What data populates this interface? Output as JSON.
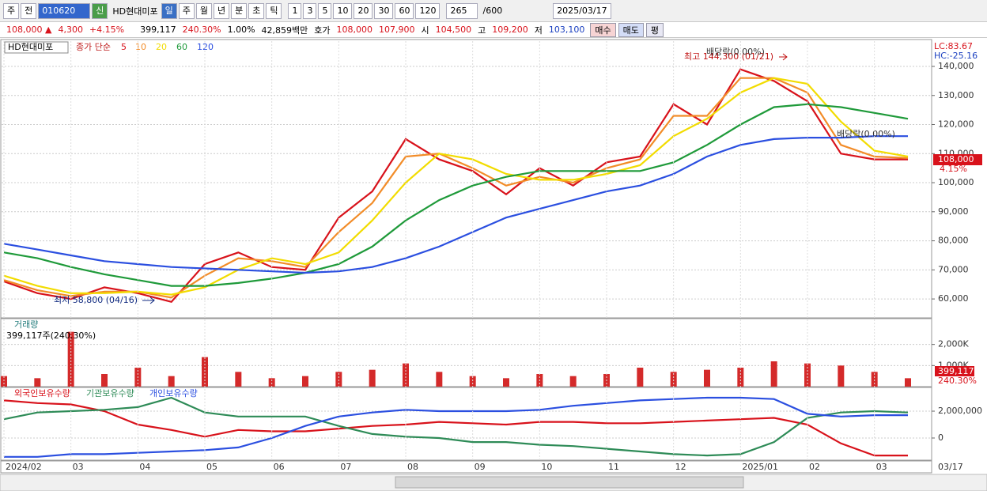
{
  "toolbar": {
    "market": "주",
    "prev": "전",
    "code": "010620",
    "badge": "신",
    "name": "HD현대미포",
    "periods": [
      "일",
      "주",
      "월",
      "년",
      "분",
      "초",
      "틱"
    ],
    "intervals": [
      "1",
      "3",
      "5",
      "10",
      "20",
      "30",
      "60",
      "120"
    ],
    "count": "265",
    "total": "/600",
    "date": "2025/03/17"
  },
  "info_bar": {
    "price": "108,000 ▲",
    "change": "4,300",
    "change_pct": "+4.15%",
    "volume": "399,117",
    "volume_pct": "240.30%",
    "ratio": "1.00%",
    "amount": "42,859백만",
    "quote_label": "호가",
    "ask": "108,000",
    "bid": "107,900",
    "open_label": "시",
    "open": "104,500",
    "high_label": "고",
    "high": "109,200",
    "low_label": "저",
    "low": "103,100",
    "buy": "매수",
    "sell": "매도",
    "avg": "평"
  },
  "chart_data": [
    {
      "type": "line",
      "title": "HD현대미포",
      "legend_prefix": "종가 단순",
      "grid": true,
      "ylim": [
        53500,
        148700
      ],
      "yticks": [
        {
          "value": 60000,
          "label": "60,000"
        },
        {
          "value": 70000,
          "label": "70,000"
        },
        {
          "value": 80000,
          "label": "80,000"
        },
        {
          "value": 90000,
          "label": "90,000"
        },
        {
          "value": 100000,
          "label": "100,000"
        },
        {
          "value": 110000,
          "label": "110,000"
        },
        {
          "value": 120000,
          "label": "120,000"
        },
        {
          "value": 130000,
          "label": "130,000"
        },
        {
          "value": 140000,
          "label": "140,000"
        }
      ],
      "series": [
        {
          "name": "5",
          "color": "#d8121b",
          "values": [
            66000,
            62000,
            60000,
            64000,
            62000,
            59000,
            72000,
            76000,
            71000,
            70000,
            88000,
            97000,
            115000,
            108000,
            104000,
            96000,
            105000,
            99000,
            107000,
            109000,
            127000,
            120000,
            139000,
            135000,
            128000,
            110000,
            108000,
            108000
          ]
        },
        {
          "name": "10",
          "color": "#f28c28",
          "values": [
            66500,
            63000,
            61000,
            62500,
            62500,
            60500,
            68000,
            74000,
            73000,
            71000,
            83000,
            93000,
            109000,
            110000,
            105000,
            99000,
            102000,
            100000,
            105000,
            108000,
            123000,
            123000,
            136000,
            136000,
            131000,
            113000,
            109000,
            108500
          ]
        },
        {
          "name": "20",
          "color": "#f2dc00",
          "values": [
            68000,
            64500,
            62000,
            62000,
            62500,
            61500,
            64000,
            70000,
            74000,
            72000,
            76000,
            87000,
            100000,
            110000,
            108000,
            103000,
            101000,
            101000,
            103000,
            106000,
            116000,
            122000,
            131000,
            136000,
            134000,
            121000,
            111000,
            109000
          ]
        },
        {
          "name": "60",
          "color": "#1f9a3a",
          "values": [
            76000,
            74000,
            71000,
            68500,
            66500,
            64500,
            64500,
            65500,
            67000,
            69000,
            72000,
            78000,
            87000,
            94000,
            99000,
            102000,
            104000,
            104000,
            104000,
            104000,
            107000,
            113000,
            120000,
            126000,
            127000,
            126000,
            124000,
            122000
          ]
        },
        {
          "name": "120",
          "color": "#2b4fe0",
          "values": [
            79000,
            77000,
            75000,
            73000,
            72000,
            71000,
            70500,
            70000,
            69500,
            69000,
            69500,
            71000,
            74000,
            78000,
            83000,
            88000,
            91000,
            94000,
            97000,
            99000,
            103000,
            109000,
            113000,
            115000,
            115500,
            115500,
            116000,
            116000
          ]
        }
      ],
      "annotations": {
        "high": "최고 144,300 (01/21)",
        "low": "최저 58,800 (04/16)",
        "dividend": [
          "배당락(0.00%)",
          "배당락(0.00%)"
        ]
      },
      "side_labels": {
        "lc": "LC:83.67",
        "hc": "HC:-25.16",
        "last_price": "108,000",
        "last_change": "4.15%"
      }
    },
    {
      "type": "bar",
      "title": "거래량",
      "subtitle": "399,117주(240.30%)",
      "color": "#d42a2a",
      "ylim": [
        0,
        3150000
      ],
      "yticks": [
        {
          "value": 1000000,
          "label": "1,000K"
        },
        {
          "value": 2000000,
          "label": "2,000K"
        }
      ],
      "values": [
        500000,
        400000,
        2600000,
        600000,
        900000,
        500000,
        1400000,
        700000,
        400000,
        500000,
        700000,
        800000,
        1100000,
        700000,
        500000,
        400000,
        600000,
        500000,
        600000,
        900000,
        700000,
        800000,
        900000,
        1200000,
        1100000,
        1000000,
        700000,
        399117
      ],
      "last_label": "399,117",
      "last_pct": "240.30%"
    },
    {
      "type": "line",
      "ylim": [
        -1650000,
        3650000
      ],
      "yticks": [
        0,
        {
          "value": 2000000,
          "label": "2,000,000"
        }
      ],
      "categories": [
        "2024/02",
        null,
        "03",
        null,
        "04",
        null,
        "05",
        null,
        "06",
        null,
        "07",
        null,
        "08",
        null,
        "09",
        null,
        "10",
        null,
        "11",
        null,
        "12",
        null,
        "2025/01",
        null,
        "02",
        null,
        "03",
        null
      ],
      "end_label": "03/17",
      "series": [
        {
          "name": "외국인보유수량",
          "color": "#d8121b",
          "values": [
            2800000,
            2600000,
            2500000,
            2000000,
            1000000,
            600000,
            100000,
            600000,
            500000,
            500000,
            700000,
            900000,
            1000000,
            1200000,
            1100000,
            1000000,
            1200000,
            1200000,
            1100000,
            1100000,
            1200000,
            1300000,
            1400000,
            1500000,
            1000000,
            -400000,
            -1300000,
            -1300000
          ]
        },
        {
          "name": "기관보유수량",
          "color": "#2e8b57",
          "values": [
            1400000,
            1900000,
            2000000,
            2100000,
            2300000,
            3000000,
            1900000,
            1600000,
            1600000,
            1600000,
            900000,
            300000,
            100000,
            0,
            -300000,
            -300000,
            -500000,
            -600000,
            -800000,
            -1000000,
            -1200000,
            -1300000,
            -1200000,
            -300000,
            1500000,
            1900000,
            2000000,
            1900000
          ]
        },
        {
          "name": "개인보유수량",
          "color": "#2b4fe0",
          "values": [
            -1400000,
            -1400000,
            -1200000,
            -1200000,
            -1100000,
            -1000000,
            -900000,
            -700000,
            0,
            900000,
            1600000,
            1900000,
            2100000,
            2000000,
            2000000,
            2000000,
            2100000,
            2400000,
            2600000,
            2800000,
            2900000,
            3000000,
            3000000,
            2900000,
            1800000,
            1600000,
            1700000,
            1700000
          ]
        }
      ]
    }
  ]
}
